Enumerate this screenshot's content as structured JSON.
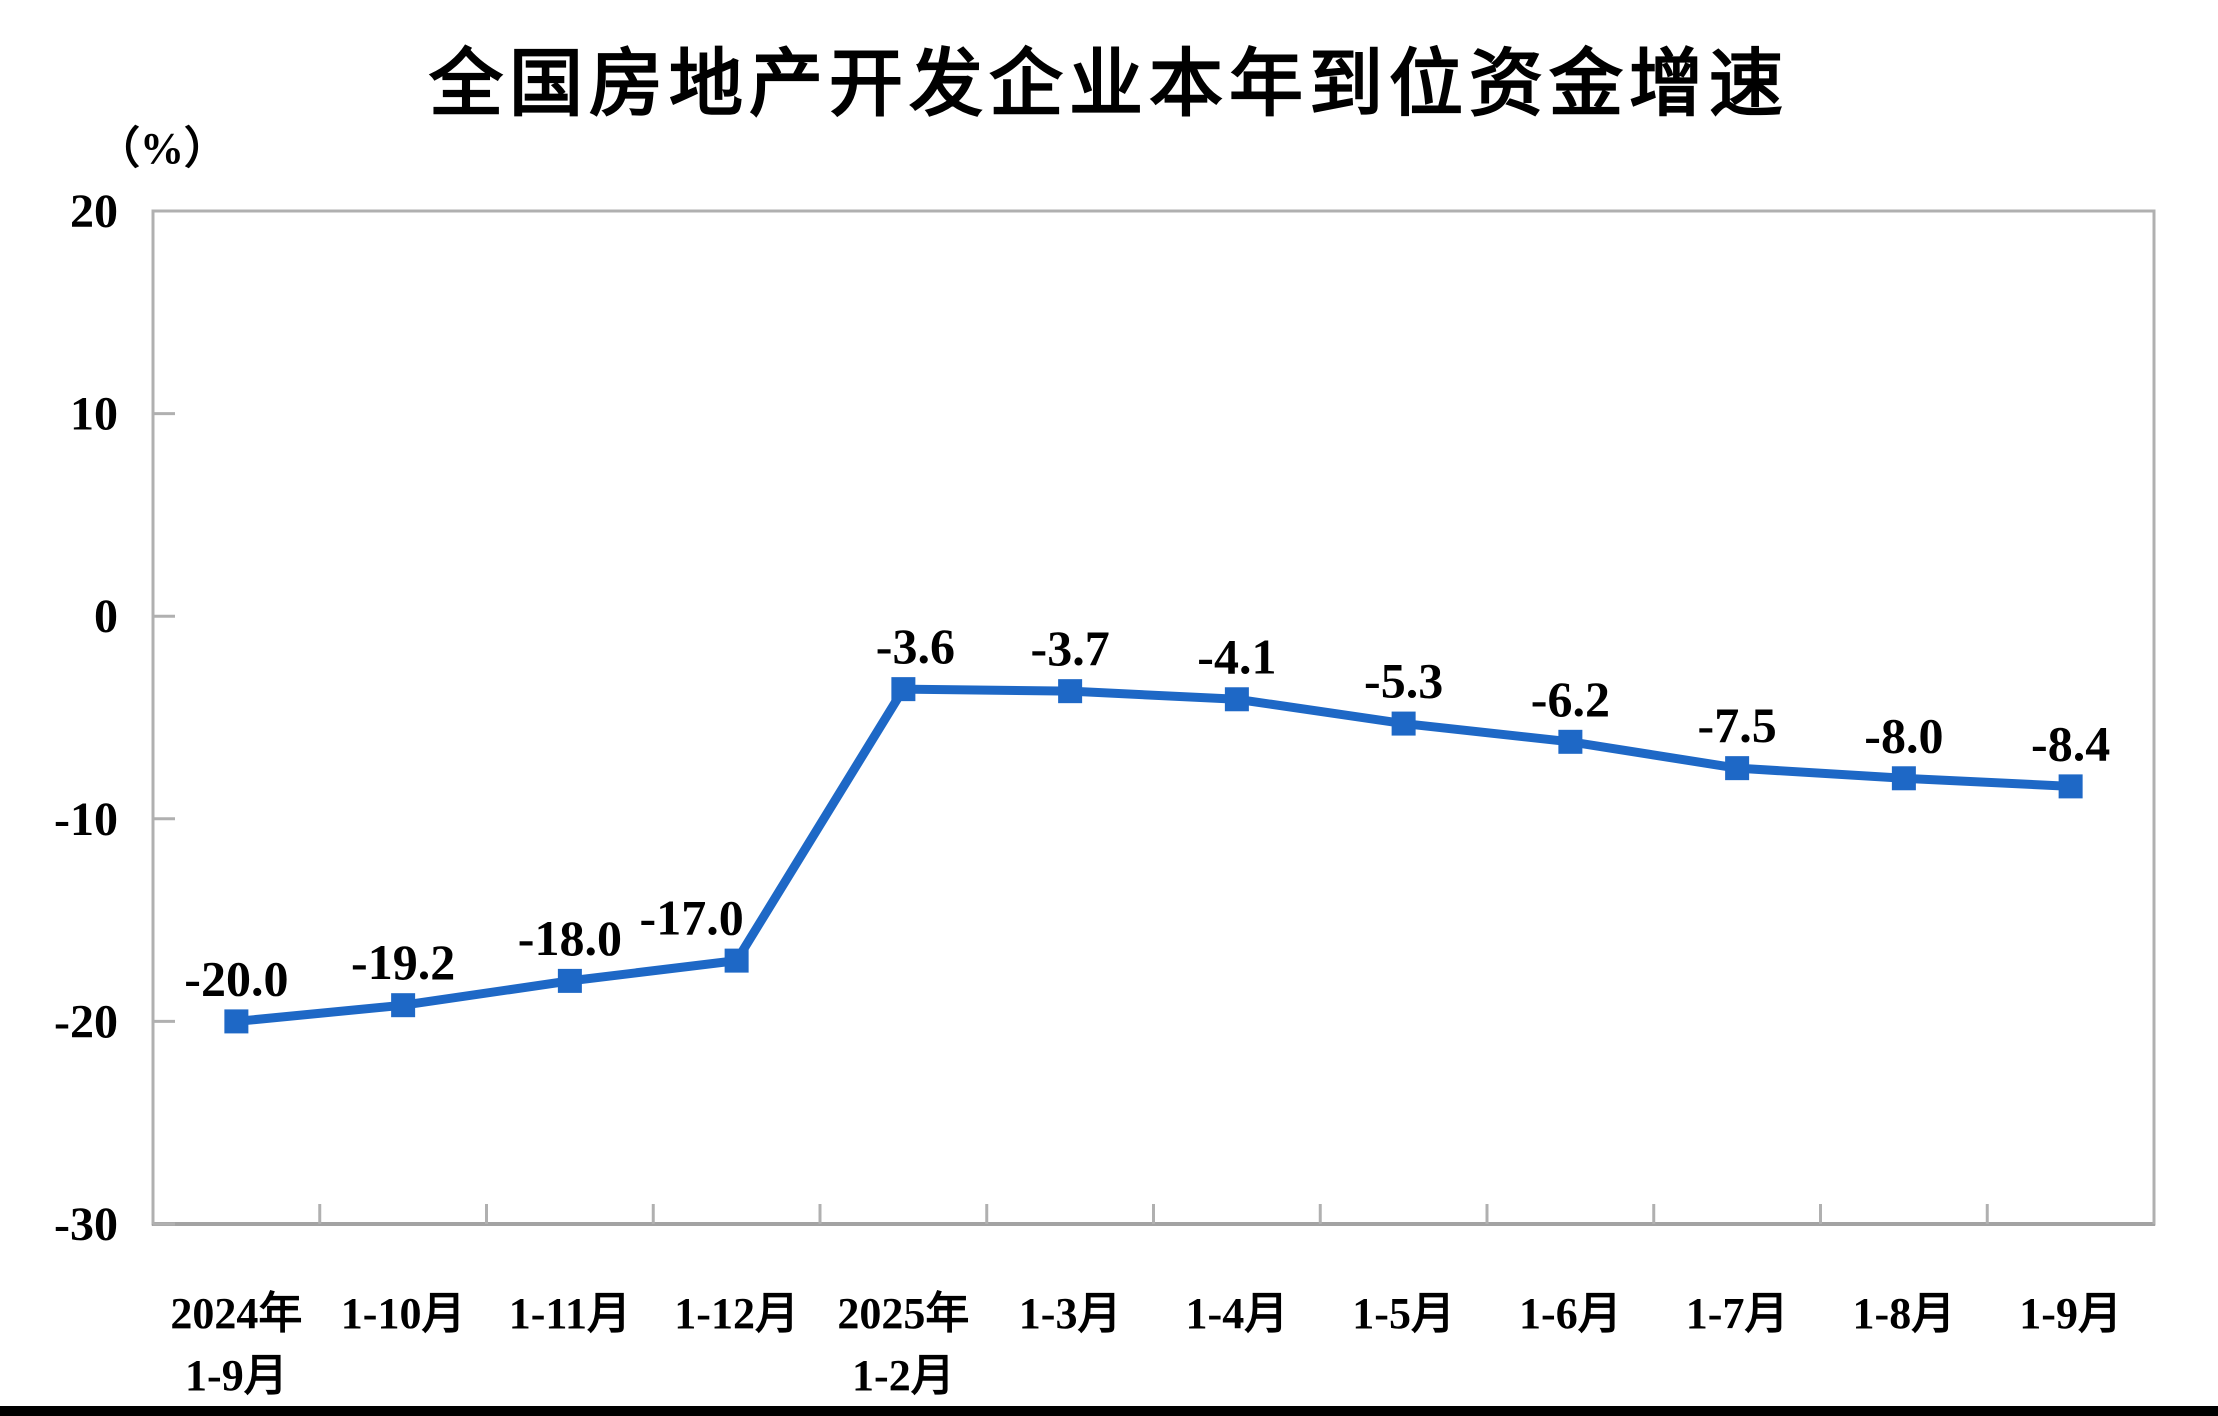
{
  "chart_data": {
    "type": "line",
    "title": "全国房地产开发企业本年到位资金增速",
    "unit_label": "（%）",
    "categories": [
      "2024年\n1-9月",
      "1-10月",
      "1-11月",
      "1-12月",
      "2025年\n1-2月",
      "1-3月",
      "1-4月",
      "1-5月",
      "1-6月",
      "1-7月",
      "1-8月",
      "1-9月"
    ],
    "values": [
      -20.0,
      -19.2,
      -18.0,
      -17.0,
      -3.6,
      -3.7,
      -4.1,
      -5.3,
      -6.2,
      -7.5,
      -8.0,
      -8.4
    ],
    "data_labels": [
      "-20.0",
      "-19.2",
      "-18.0",
      "-17.0",
      "-3.6",
      "-3.7",
      "-4.1",
      "-5.3",
      "-6.2",
      "-7.5",
      "-8.0",
      "-8.4"
    ],
    "y_ticks": [
      20,
      10,
      0,
      -10,
      -20,
      -30
    ],
    "y_tick_labels": [
      "20",
      "10",
      "0",
      "-10",
      "-20",
      "-30"
    ],
    "ylim": [
      -30,
      20
    ],
    "grid": "off",
    "legend": "none",
    "line_color": "#1e68c6",
    "marker_color": "#1e68c6",
    "axis_color": "#b0b0b0",
    "label_color": "#000000"
  }
}
